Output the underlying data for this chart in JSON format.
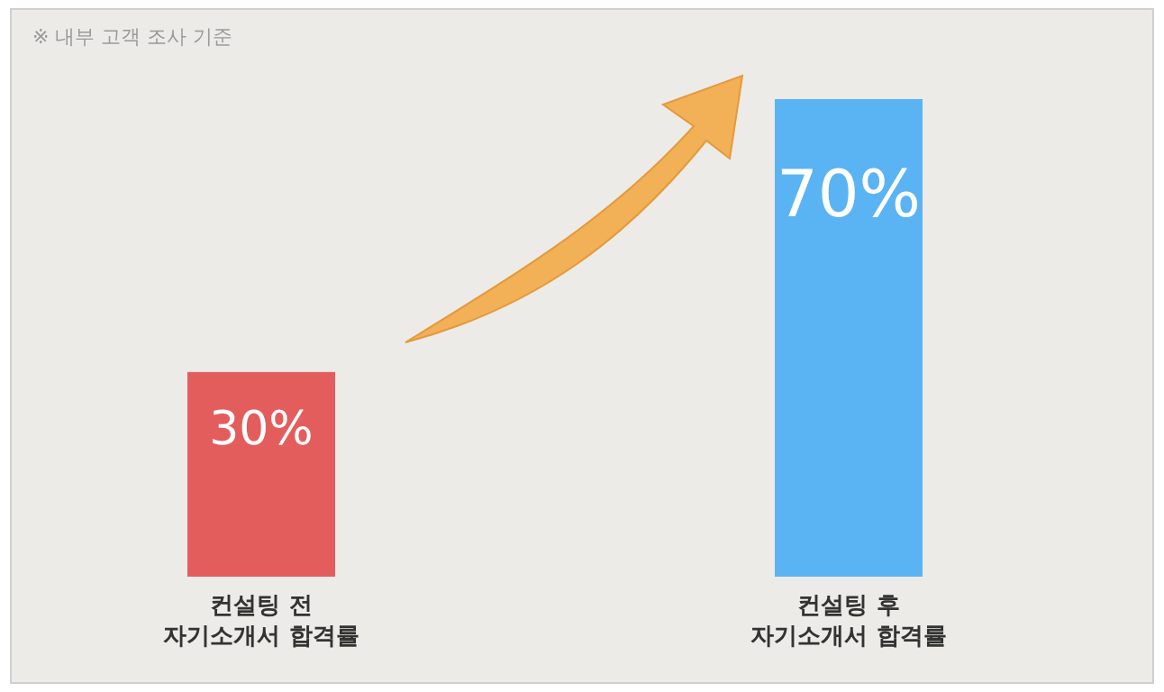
{
  "chart_data": {
    "type": "bar",
    "categories": [
      "컨설팅 전\n자기소개서 합격률",
      "컨설팅 후\n자기소개서 합격률"
    ],
    "values": [
      30,
      70
    ],
    "colors": [
      "#e45d5d",
      "#5ab3f3"
    ],
    "value_labels": [
      "30%",
      "70%"
    ],
    "annotations": [
      "※ 내부 고객 조사 기준"
    ]
  }
}
